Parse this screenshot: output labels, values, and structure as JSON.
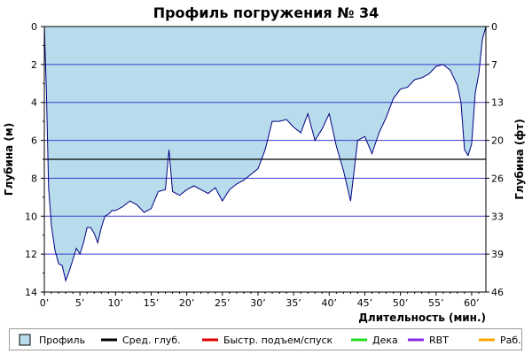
{
  "chart_data": {
    "type": "area",
    "title": "Профиль погружения № 34",
    "xlabel": "Длительность (мин.)",
    "ylabel_left": "Глубина (м)",
    "ylabel_right": "Глубина (фт)",
    "xlim": [
      0,
      62
    ],
    "ylim": [
      0,
      14
    ],
    "y_inverted": true,
    "x_ticks": [
      {
        "value": 0,
        "label": "0’"
      },
      {
        "value": 5,
        "label": "5’"
      },
      {
        "value": 10,
        "label": "10’"
      },
      {
        "value": 15,
        "label": "15’"
      },
      {
        "value": 20,
        "label": "20’"
      },
      {
        "value": 25,
        "label": "25’"
      },
      {
        "value": 30,
        "label": "30’"
      },
      {
        "value": 35,
        "label": "35’"
      },
      {
        "value": 40,
        "label": "40’"
      },
      {
        "value": 45,
        "label": "45’"
      },
      {
        "value": 50,
        "label": "50’"
      },
      {
        "value": 55,
        "label": "55’"
      },
      {
        "value": 60,
        "label": "60’"
      }
    ],
    "y_ticks_left": [
      {
        "value": 0,
        "label": "0"
      },
      {
        "value": 2,
        "label": "2"
      },
      {
        "value": 4,
        "label": "4"
      },
      {
        "value": 6,
        "label": "6"
      },
      {
        "value": 8,
        "label": "8"
      },
      {
        "value": 10,
        "label": "10"
      },
      {
        "value": 12,
        "label": "12"
      },
      {
        "value": 14,
        "label": "14"
      }
    ],
    "y_ticks_right": [
      {
        "value": 0,
        "label": "0"
      },
      {
        "value": 2,
        "label": "7"
      },
      {
        "value": 4,
        "label": "13"
      },
      {
        "value": 6,
        "label": "20"
      },
      {
        "value": 8,
        "label": "26"
      },
      {
        "value": 10,
        "label": "33"
      },
      {
        "value": 12,
        "label": "39"
      },
      {
        "value": 14,
        "label": "46"
      }
    ],
    "gridlines": [
      2,
      4,
      6,
      8,
      10,
      12
    ],
    "avg_depth": 7,
    "series": [
      {
        "name": "Профиль",
        "color": "#000080",
        "fill": "#b8dcec",
        "x": [
          0,
          0.3,
          0.6,
          1,
          1.5,
          2,
          2.5,
          3,
          3.5,
          4,
          4.5,
          5,
          5.5,
          6,
          6.5,
          7,
          7.5,
          8,
          8.5,
          9,
          9.5,
          10,
          11,
          12,
          13,
          14,
          15,
          16,
          17,
          17.5,
          18,
          19,
          20,
          21,
          22,
          23,
          24,
          25,
          26,
          27,
          28,
          29,
          30,
          31,
          32,
          33,
          34,
          35,
          36,
          37,
          38,
          39,
          40,
          41,
          42,
          43,
          44,
          45,
          46,
          47,
          48,
          49,
          50,
          51,
          52,
          53,
          54,
          55,
          56,
          57,
          58,
          58.5,
          59,
          59.5,
          60,
          60.5,
          61,
          61.5,
          62
        ],
        "values": [
          0,
          3.5,
          8.5,
          10.5,
          11.8,
          12.5,
          12.6,
          13.4,
          12.9,
          12.3,
          11.7,
          12.0,
          11.4,
          10.6,
          10.6,
          10.9,
          11.4,
          10.6,
          10.0,
          9.9,
          9.7,
          9.7,
          9.5,
          9.2,
          9.4,
          9.8,
          9.6,
          8.7,
          8.6,
          6.5,
          8.7,
          8.9,
          8.6,
          8.4,
          8.6,
          8.8,
          8.5,
          9.2,
          8.6,
          8.3,
          8.1,
          7.8,
          7.5,
          6.5,
          5.0,
          5.0,
          4.9,
          5.3,
          5.6,
          4.6,
          6.0,
          5.4,
          4.6,
          6.3,
          7.6,
          9.2,
          6.0,
          5.8,
          6.7,
          5.6,
          4.8,
          3.8,
          3.3,
          3.2,
          2.8,
          2.7,
          2.5,
          2.1,
          2.0,
          2.3,
          3.1,
          4.0,
          6.5,
          6.8,
          6.2,
          3.5,
          2.5,
          0.7,
          0
        ]
      },
      {
        "name": "Сред. глуб.",
        "color": "#000000",
        "x": [
          0,
          62
        ],
        "values": [
          7,
          7
        ]
      }
    ],
    "legend_position": "bottom",
    "legend": [
      {
        "label": "Профиль",
        "color": "#b8dcec",
        "kind": "box"
      },
      {
        "label": "Сред. глуб.",
        "color": "#000000",
        "kind": "line"
      },
      {
        "label": "Быстр. подъем/спуск",
        "color": "#e00000",
        "kind": "line"
      },
      {
        "label": "Дека",
        "color": "#22dd22",
        "kind": "line"
      },
      {
        "label": "RBT",
        "color": "#8a2be2",
        "kind": "line"
      },
      {
        "label": "Раб.",
        "color": "#ffa500",
        "kind": "line"
      }
    ]
  }
}
